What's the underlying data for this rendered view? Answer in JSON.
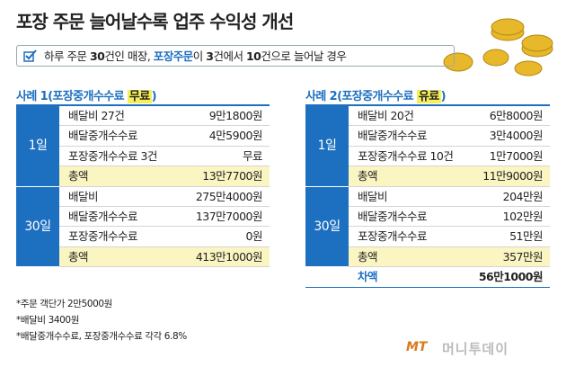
{
  "header": {
    "title": "포장 주문 늘어날수록 업주 수익성 개선",
    "subtitle": [
      "하루 주문 ",
      "30",
      "건인 매장, ",
      "포장주문",
      "이 ",
      "3",
      "건에서 ",
      "10",
      "건으로 늘어날 경우"
    ]
  },
  "cases": [
    {
      "title": [
        "사례 1(포장중개수수료 ",
        "무료",
        ")"
      ],
      "groups": [
        {
          "day": "1일",
          "rows": [
            [
              "배달비 27건",
              "9만1800원"
            ],
            [
              "배달중개수수료",
              "4만5900원"
            ],
            [
              "포장중개수수료 3건",
              "무료"
            ],
            [
              "총액",
              "13만7700원"
            ]
          ]
        },
        {
          "day": "30일",
          "rows": [
            [
              "배달비",
              "275만4000원"
            ],
            [
              "배달중개수수료",
              "137만7000원"
            ],
            [
              "포장중개수수료",
              "0원"
            ],
            [
              "총액",
              "413만1000원"
            ]
          ]
        }
      ]
    },
    {
      "title": [
        "사례 2(포장중개수수료 ",
        "유료",
        ")"
      ],
      "groups": [
        {
          "day": "1일",
          "rows": [
            [
              "배달비 20건",
              "6만8000원"
            ],
            [
              "배달중개수수료",
              "3만4000원"
            ],
            [
              "포장중개수수료 10건",
              "1만7000원"
            ],
            [
              "총액",
              "11만9000원"
            ]
          ]
        },
        {
          "day": "30일",
          "rows": [
            [
              "배달비",
              "204만원"
            ],
            [
              "배달중개수수료",
              "102만원"
            ],
            [
              "포장중개수수료",
              "51만원"
            ],
            [
              "총액",
              "357만원"
            ]
          ]
        }
      ],
      "difference": [
        "차액",
        "56만1000원"
      ]
    }
  ],
  "footnotes": [
    "*주문 객단가 2만5000원",
    "*배달비 3400원",
    "*배달중개수수료, 포장중개수수료 각각 6.8%"
  ],
  "logo": [
    "MT",
    "머니투데이"
  ]
}
